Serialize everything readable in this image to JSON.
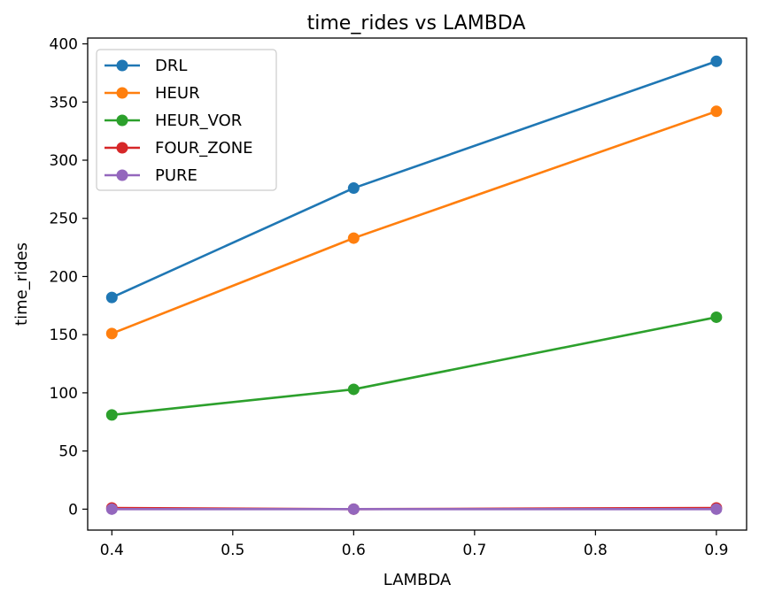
{
  "chart_data": {
    "type": "line",
    "title": "time_rides vs LAMBDA",
    "xlabel": "LAMBDA",
    "ylabel": "time_rides",
    "x": [
      0.4,
      0.6,
      0.9
    ],
    "xlim": [
      0.38,
      0.925
    ],
    "ylim": [
      -18,
      405
    ],
    "xticks": [
      "0.4",
      "0.5",
      "0.6",
      "0.7",
      "0.8",
      "0.9"
    ],
    "yticks": [
      "0",
      "50",
      "100",
      "150",
      "200",
      "250",
      "300",
      "350",
      "400"
    ],
    "grid": false,
    "legend_position": "upper-left",
    "marker": "circle",
    "series": [
      {
        "name": "DRL",
        "color": "#1f77b4",
        "values": [
          182,
          276,
          385
        ]
      },
      {
        "name": "HEUR",
        "color": "#ff7f0e",
        "values": [
          151,
          233,
          342
        ]
      },
      {
        "name": "HEUR_VOR",
        "color": "#2ca02c",
        "values": [
          81,
          103,
          165
        ]
      },
      {
        "name": "FOUR_ZONE",
        "color": "#d62728",
        "values": [
          1,
          0,
          1
        ]
      },
      {
        "name": "PURE",
        "color": "#9467bd",
        "values": [
          0,
          0,
          0
        ]
      }
    ]
  }
}
